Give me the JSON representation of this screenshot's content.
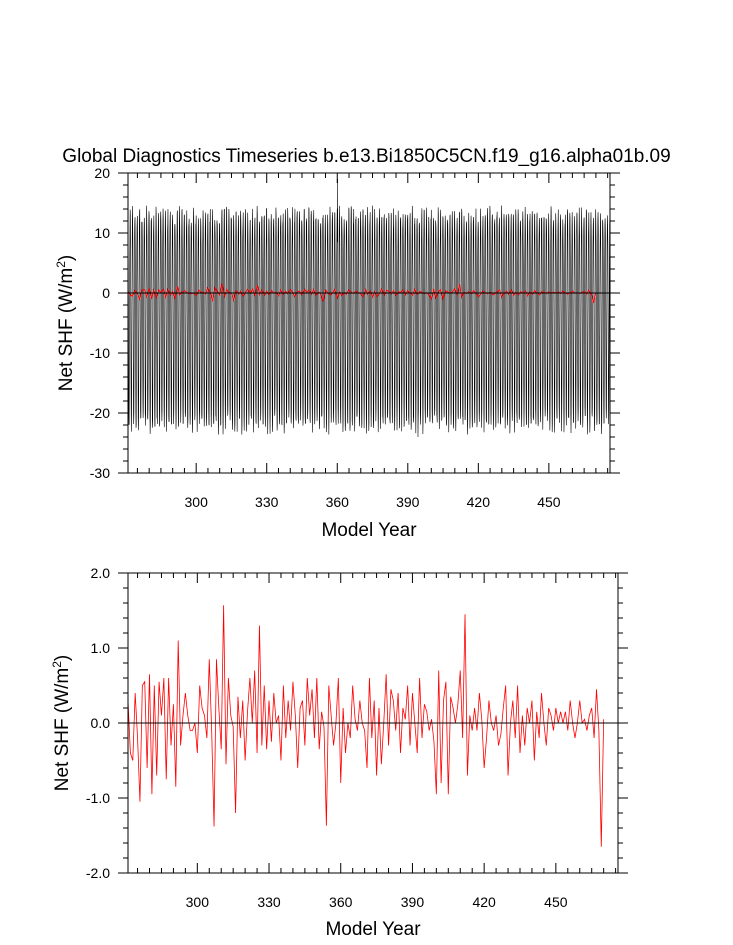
{
  "title": "Global Diagnostics Timeseries b.e13.Bi1850C5CN.f19_g16.alpha01b.09",
  "colors": {
    "monthly": "#000000",
    "annual": "#ff0000",
    "zero_line": "#000000"
  },
  "chart_data": [
    {
      "type": "line",
      "name": "monthly-panel",
      "xlabel": "Model Year",
      "ylabel_main": "Net SHF (W/m",
      "ylabel_sup": "2",
      "ylabel_tail": ")",
      "xlim": [
        271,
        476
      ],
      "ylim": [
        -30,
        20
      ],
      "x_ticks": [
        300,
        330,
        360,
        390,
        420,
        450
      ],
      "x_tick_labels": [
        "300",
        "330",
        "360",
        "390",
        "420",
        "450"
      ],
      "y_ticks": [
        -30,
        -20,
        -10,
        0,
        10,
        20
      ],
      "y_tick_labels": [
        "-30",
        "-20",
        "-10",
        "0",
        "10",
        "20"
      ],
      "monthly_series": {
        "year_start": 271,
        "year_end": 476,
        "monthly_climatology": [
          12.5,
          8.0,
          0.5,
          -10.5,
          -19.5,
          -22.0,
          -20.5,
          -12.0,
          -2.0,
          6.0,
          11.0,
          13.0
        ],
        "typical_max": 13.5,
        "typical_min": -22.5,
        "extreme_max": 19,
        "extreme_min": -24
      },
      "zero_line": 0,
      "grid": false,
      "legend": "none"
    },
    {
      "type": "line",
      "name": "annual-panel",
      "xlabel": "Model Year",
      "ylabel_main": "Net SHF (W/m",
      "ylabel_sup": "2",
      "ylabel_tail": ")",
      "xlim": [
        271,
        476
      ],
      "ylim": [
        -2.0,
        2.0
      ],
      "x_ticks": [
        300,
        330,
        360,
        390,
        420,
        450
      ],
      "x_tick_labels": [
        "300",
        "330",
        "360",
        "390",
        "420",
        "450"
      ],
      "y_ticks": [
        -2.0,
        -1.0,
        0.0,
        1.0,
        2.0
      ],
      "y_tick_labels": [
        "-2.0",
        "-1.0",
        "0.0",
        "1.0",
        "2.0"
      ],
      "zero_line": 0,
      "grid": false,
      "legend": "none",
      "annual_series": {
        "x_start": 271,
        "values": [
          0.3,
          -0.4,
          -0.5,
          0.4,
          -0.2,
          -1.05,
          0.5,
          0.55,
          -0.6,
          0.65,
          -0.95,
          0.5,
          -0.7,
          0.55,
          0.1,
          0.6,
          -0.75,
          0.6,
          -0.3,
          0.25,
          -0.85,
          1.1,
          -0.3,
          0.1,
          0.4,
          0.1,
          -0.1,
          -0.1,
          0.0,
          -0.4,
          0.5,
          0.2,
          0.1,
          -0.2,
          0.85,
          -0.1,
          -1.38,
          0.85,
          0.2,
          -0.35,
          1.57,
          -0.55,
          0.6,
          0.1,
          -0.05,
          -1.2,
          0.35,
          -0.2,
          0.3,
          -0.5,
          0.15,
          0.6,
          0.0,
          0.7,
          -0.4,
          1.3,
          -0.3,
          0.5,
          -0.35,
          0.3,
          -0.25,
          0.4,
          0.0,
          0.1,
          -0.5,
          0.5,
          -0.2,
          0.3,
          -0.1,
          0.55,
          0.1,
          -0.6,
          0.2,
          0.3,
          -0.3,
          0.6,
          0.1,
          0.45,
          -0.2,
          0.6,
          -0.35,
          0.15,
          -0.05,
          -1.37,
          0.5,
          0.1,
          -0.3,
          0.0,
          0.6,
          -0.8,
          0.2,
          -0.4,
          0.0,
          -0.2,
          0.5,
          0.05,
          -0.1,
          0.3,
          0.0,
          -0.1,
          -0.6,
          0.6,
          -0.2,
          0.3,
          -0.7,
          0.2,
          -0.55,
          0.0,
          0.65,
          -0.3,
          0.45,
          0.3,
          -0.1,
          0.4,
          -0.4,
          0.2,
          0.05,
          0.5,
          -0.3,
          0.4,
          0.0,
          -0.4,
          0.6,
          -0.2,
          0.25,
          0.15,
          -0.1,
          0.05,
          -0.25,
          -0.95,
          0.7,
          -0.8,
          0.3,
          0.55,
          -0.95,
          0.35,
          0.2,
          0.0,
          0.25,
          0.7,
          -0.2,
          1.45,
          -0.7,
          0.1,
          -0.1,
          0.2,
          -0.1,
          0.4,
          0.05,
          -0.6,
          -0.2,
          0.3,
          0.0,
          -0.1,
          0.1,
          -0.3,
          -0.15,
          0.2,
          0.5,
          -0.7,
          0.0,
          0.3,
          -0.2,
          0.5,
          -0.4,
          0.1,
          -0.3,
          0.2,
          0.0,
          0.3,
          -0.5,
          0.15,
          -0.2,
          0.4,
          0.0,
          -0.3,
          0.2,
          0.1,
          -0.1,
          0.2,
          0.0,
          0.15,
          0.0,
          0.15,
          -0.1,
          0.3,
          0.0,
          -0.2,
          0.0,
          0.3,
          0.0,
          0.05,
          -0.1,
          0.1,
          0.2,
          -0.2,
          0.45,
          -0.1,
          -1.65,
          0.05
        ]
      }
    }
  ]
}
